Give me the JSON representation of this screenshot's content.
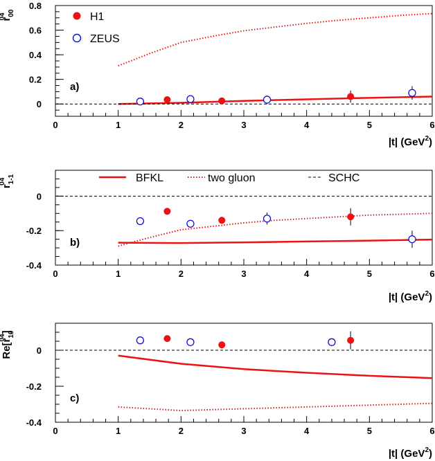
{
  "chart_data": [
    {
      "type": "scatter",
      "panel_label": "a)",
      "ylabel_base": "r",
      "ylabel_sup": "04",
      "ylabel_sub": "00",
      "xlabel": "|t| (GeV",
      "xlabel_sup": "2",
      "xlabel_end": ")",
      "xlim": [
        0,
        6
      ],
      "ylim": [
        -0.1,
        0.8
      ],
      "xticks": [
        0,
        1,
        2,
        3,
        4,
        5,
        6
      ],
      "yticks": [
        0,
        0.2,
        0.4,
        0.6,
        0.8
      ],
      "ytick_labels": [
        "0",
        "0.2",
        "0.4",
        "0.6",
        "0.8"
      ],
      "legend": [
        {
          "name": "H1",
          "marker": "filled-circle"
        },
        {
          "name": "ZEUS",
          "marker": "open-circle"
        }
      ],
      "series": [
        {
          "name": "H1",
          "x": [
            1.78,
            2.65,
            4.7
          ],
          "y": [
            0.035,
            0.025,
            0.06
          ],
          "yerr": [
            0.01,
            0.015,
            0.05
          ]
        },
        {
          "name": "ZEUS",
          "x": [
            1.35,
            2.15,
            3.37,
            5.68
          ],
          "y": [
            0.02,
            0.04,
            0.035,
            0.09
          ],
          "yerr": [
            0.01,
            0.01,
            0.035,
            0.055
          ]
        },
        {
          "name": "BFKL",
          "x": [
            1,
            2,
            3,
            4,
            5,
            6
          ],
          "y": [
            0.0,
            0.01,
            0.025,
            0.038,
            0.05,
            0.06
          ]
        },
        {
          "name": "two gluon",
          "x": [
            1,
            1.5,
            2,
            2.5,
            3,
            3.5,
            4,
            4.5,
            5,
            5.5,
            6
          ],
          "y": [
            0.31,
            0.41,
            0.5,
            0.55,
            0.595,
            0.625,
            0.655,
            0.68,
            0.7,
            0.72,
            0.735
          ]
        },
        {
          "name": "SCHC",
          "x": [
            0,
            6
          ],
          "y": [
            0,
            0
          ]
        }
      ]
    },
    {
      "type": "scatter",
      "panel_label": "b)",
      "ylabel_base": "r",
      "ylabel_sup": "04",
      "ylabel_sub": "1-1",
      "xlabel": "|t| (GeV",
      "xlabel_sup": "2",
      "xlabel_end": ")",
      "xlim": [
        0,
        6
      ],
      "ylim": [
        -0.4,
        0.15
      ],
      "xticks": [
        0,
        1,
        2,
        3,
        4,
        5,
        6
      ],
      "yticks": [
        -0.4,
        -0.2,
        0
      ],
      "ytick_labels": [
        "-0.4",
        "-0.2",
        "0"
      ],
      "legend": [
        {
          "name": "BFKL",
          "style": "solid"
        },
        {
          "name": "two gluon",
          "style": "dotted"
        },
        {
          "name": "SCHC",
          "style": "dashed"
        }
      ],
      "series": [
        {
          "name": "H1",
          "x": [
            1.78,
            2.65,
            4.7
          ],
          "y": [
            -0.088,
            -0.14,
            -0.12
          ],
          "yerr": [
            0.01,
            0.02,
            0.05
          ]
        },
        {
          "name": "ZEUS",
          "x": [
            1.35,
            2.15,
            3.37,
            5.68
          ],
          "y": [
            -0.145,
            -0.16,
            -0.13,
            -0.25
          ],
          "yerr": [
            0.02,
            0.02,
            0.035,
            0.05
          ]
        },
        {
          "name": "BFKL",
          "x": [
            1,
            2,
            3,
            4,
            5,
            6
          ],
          "y": [
            -0.27,
            -0.272,
            -0.268,
            -0.263,
            -0.258,
            -0.252
          ]
        },
        {
          "name": "two gluon",
          "x": [
            1,
            1.5,
            2,
            2.5,
            3,
            3.5,
            4,
            4.5,
            5,
            5.5,
            6
          ],
          "y": [
            -0.29,
            -0.24,
            -0.195,
            -0.175,
            -0.155,
            -0.14,
            -0.13,
            -0.12,
            -0.11,
            -0.105,
            -0.1
          ]
        },
        {
          "name": "SCHC",
          "x": [
            0,
            6
          ],
          "y": [
            0,
            0
          ]
        }
      ]
    },
    {
      "type": "scatter",
      "panel_label": "c)",
      "ylabel_base": "Re[r",
      "ylabel_sup": "04",
      "ylabel_sub": "10",
      "ylabel_end": "]",
      "xlabel": "|t| (GeV",
      "xlabel_sup": "2",
      "xlabel_end": ")",
      "xlim": [
        0,
        6
      ],
      "ylim": [
        -0.4,
        0.15
      ],
      "xticks": [
        0,
        1,
        2,
        3,
        4,
        5,
        6
      ],
      "yticks": [
        -0.4,
        -0.2,
        0
      ],
      "ytick_labels": [
        "-0.4",
        "-0.2",
        "0"
      ],
      "series": [
        {
          "name": "H1",
          "x": [
            1.78,
            2.65,
            4.7
          ],
          "y": [
            0.065,
            0.03,
            0.055
          ],
          "yerr": [
            0.01,
            0.02,
            0.05
          ]
        },
        {
          "name": "ZEUS",
          "x": [
            1.35,
            2.15,
            4.4
          ],
          "y": [
            0.055,
            0.045,
            0.045
          ],
          "yerr": [
            0.01,
            0.01,
            0.02
          ]
        },
        {
          "name": "BFKL",
          "x": [
            1,
            2,
            3,
            4,
            5,
            6
          ],
          "y": [
            -0.03,
            -0.075,
            -0.105,
            -0.125,
            -0.142,
            -0.155
          ]
        },
        {
          "name": "two gluon",
          "x": [
            1,
            2,
            3,
            4,
            5,
            6
          ],
          "y": [
            -0.315,
            -0.335,
            -0.325,
            -0.315,
            -0.305,
            -0.295
          ]
        },
        {
          "name": "SCHC",
          "x": [
            0,
            6
          ],
          "y": [
            0,
            0
          ]
        }
      ]
    }
  ],
  "colors": {
    "h1": "#ee1111",
    "zeus": "#1111cc",
    "bfkl": "#ee1111",
    "twogluon": "#ee1111",
    "schc": "#000000",
    "axis": "#000000"
  }
}
